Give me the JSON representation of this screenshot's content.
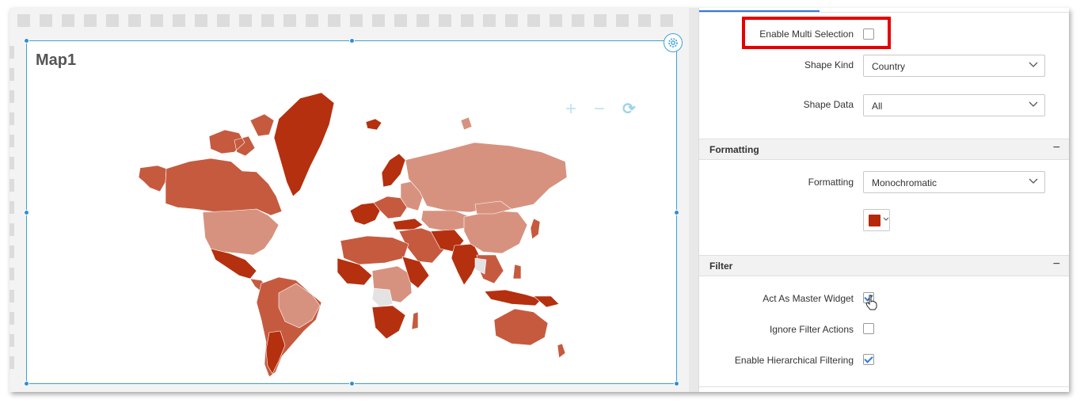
{
  "widget": {
    "title": "Map1",
    "toolbar": {
      "zoom_in": "+",
      "zoom_out": "−",
      "reset": "⟳"
    }
  },
  "map_colors": {
    "dark": "#b5300f",
    "medium": "#c65a3f",
    "light": "#d7927f",
    "no_data": "#e3e3e3"
  },
  "properties": {
    "enable_multi_selection": {
      "label": "Enable Multi Selection",
      "checked": false
    },
    "shape_kind": {
      "label": "Shape Kind",
      "value": "Country"
    },
    "shape_data": {
      "label": "Shape Data",
      "value": "All"
    },
    "formatting_section": {
      "title": "Formatting",
      "toggle": "−"
    },
    "formatting": {
      "label": "Formatting",
      "value": "Monochromatic"
    },
    "color": "#b5280a",
    "filter_section": {
      "title": "Filter",
      "toggle": "−"
    },
    "act_as_master_widget": {
      "label": "Act As Master Widget",
      "checked": true
    },
    "ignore_filter_actions": {
      "label": "Ignore Filter Actions",
      "checked": false
    },
    "enable_hierarchical_filtering": {
      "label": "Enable Hierarchical Filtering",
      "checked": true
    }
  }
}
